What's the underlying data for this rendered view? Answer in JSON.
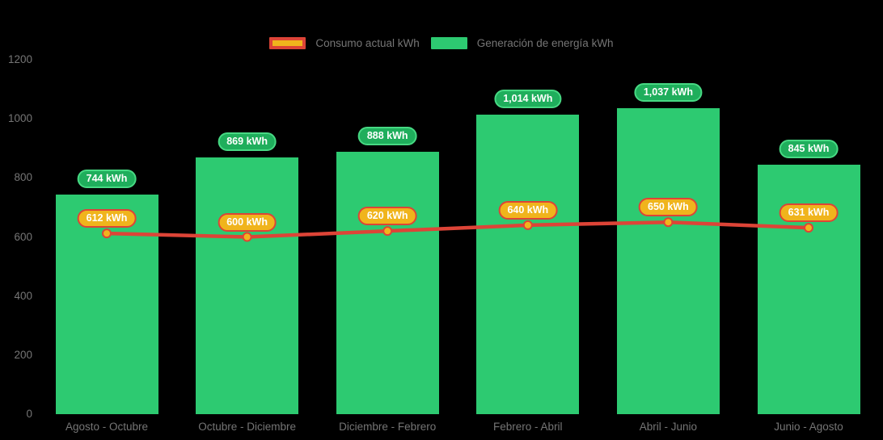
{
  "legend": {
    "items": [
      {
        "label": "Consumo actual kWh"
      },
      {
        "label": "Generación de energía kWh"
      }
    ]
  },
  "chart_data": {
    "type": "bar",
    "subtype": "bar-line-combo",
    "categories": [
      "Agosto - Octubre",
      "Octubre - Diciembre",
      "Diciembre - Febrero",
      "Febrero - Abril",
      "Abril - Junio",
      "Junio - Agosto"
    ],
    "series": [
      {
        "name": "Consumo actual kWh",
        "type": "line",
        "values": [
          612,
          600,
          620,
          640,
          650,
          631
        ],
        "labels": [
          "612 kWh",
          "600 kWh",
          "620 kWh",
          "640 kWh",
          "650 kWh",
          "631 kWh"
        ]
      },
      {
        "name": "Generación de energía kWh",
        "type": "bar",
        "values": [
          744,
          869,
          888,
          1014,
          1037,
          845
        ],
        "labels": [
          "744 kWh",
          "869 kWh",
          "888 kWh",
          "1,014 kWh",
          "1,037 kWh",
          "845 kWh"
        ]
      }
    ],
    "title": "",
    "xlabel": "",
    "ylabel": "",
    "y_ticks": [
      0,
      200,
      400,
      600,
      800,
      1000,
      1200
    ],
    "ylim": [
      0,
      1200
    ],
    "legend_position": "top",
    "grid": false,
    "value_suffix": " kWh"
  },
  "colors": {
    "background": "#000000",
    "bar_green": "#2dca71",
    "bar_badge_fill": "#1fae5c",
    "bar_badge_border": "#47d983",
    "line_red": "#dd4437",
    "line_badge_fill": "#f0b41c",
    "line_badge_border": "#dd4437",
    "marker_fill": "#f2b31c",
    "marker_border": "#dd4437",
    "axis_text": "#757575",
    "badge_text": "#ffffff"
  }
}
